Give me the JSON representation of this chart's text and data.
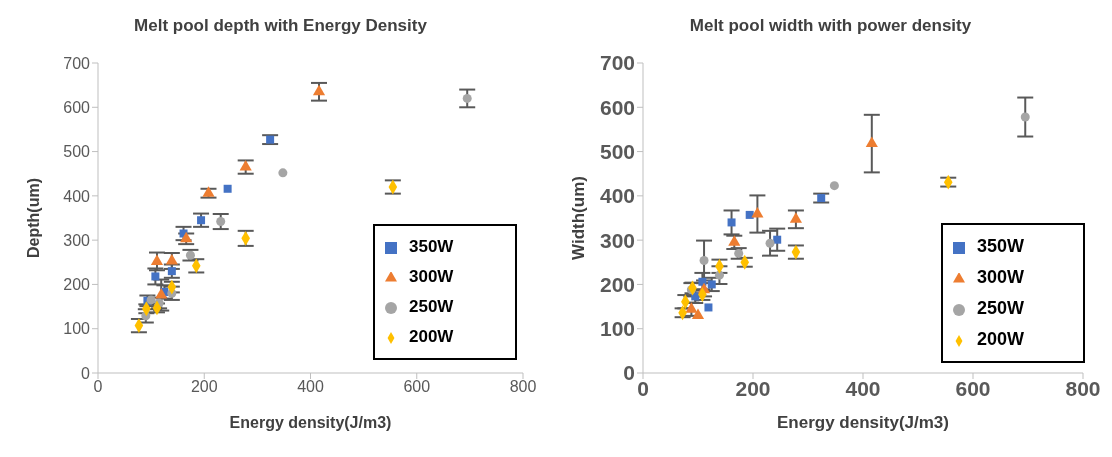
{
  "chart_data": [
    {
      "type": "scatter",
      "title": "Melt pool depth with Energy Density",
      "xlabel": "Energy density(J/m3)",
      "ylabel": "Depth(um)",
      "xlim": [
        0,
        800
      ],
      "xticks": [
        0,
        200,
        400,
        600,
        800
      ],
      "ylim": [
        0,
        700
      ],
      "yticks": [
        0,
        100,
        200,
        300,
        400,
        500,
        600,
        700
      ],
      "grid": false,
      "legend": "bottom right",
      "series": [
        {
          "name": "350W",
          "color": "#4472c4",
          "marker": "square",
          "x": [
            93,
            108,
            125,
            139,
            161,
            194,
            244,
            324
          ],
          "values": [
            163,
            218,
            183,
            230,
            315,
            345,
            416,
            527
          ],
          "errors": [
            12,
            18,
            15,
            15,
            15,
            15,
            null,
            10
          ]
        },
        {
          "name": "300W",
          "color": "#ed7d31",
          "marker": "triangle",
          "x": [
            111,
            119,
            139,
            166,
            208,
            278,
            416
          ],
          "values": [
            252,
            176,
            253,
            303,
            406,
            465,
            635
          ],
          "errors": [
            20,
            35,
            18,
            12,
            10,
            15,
            20
          ]
        },
        {
          "name": "250W",
          "color": "#a5a5a5",
          "marker": "circle",
          "x": [
            90,
            100,
            115,
            139,
            174,
            231,
            348,
            695
          ],
          "values": [
            129,
            165,
            158,
            180,
            266,
            342,
            452,
            620
          ],
          "errors": [
            15,
            null,
            12,
            15,
            12,
            17,
            null,
            20
          ]
        },
        {
          "name": "200W",
          "color": "#ffc000",
          "marker": "diamond",
          "x": [
            77,
            91,
            111,
            139,
            185,
            278,
            555
          ],
          "values": [
            107,
            145,
            147,
            194,
            242,
            304,
            420
          ],
          "errors": [
            15,
            10,
            10,
            12,
            15,
            17,
            15
          ]
        }
      ]
    },
    {
      "type": "scatter",
      "title": "Melt pool width with power density",
      "xlabel": "Energy density(J/m3)",
      "ylabel": "Width(um)",
      "xlim": [
        0,
        800
      ],
      "xticks": [
        0,
        200,
        400,
        600,
        800
      ],
      "ylim": [
        0,
        700
      ],
      "yticks": [
        0,
        100,
        200,
        300,
        400,
        500,
        600,
        700
      ],
      "grid": false,
      "legend": "bottom right",
      "series": [
        {
          "name": "350W",
          "color": "#4472c4",
          "marker": "square",
          "x": [
            95,
            108,
            119,
            125,
            161,
            194,
            244,
            324
          ],
          "values": [
            173,
            206,
            148,
            200,
            340,
            357,
            301,
            395
          ],
          "errors": [
            15,
            20,
            null,
            15,
            27,
            null,
            25,
            10
          ]
        },
        {
          "name": "300W",
          "color": "#ed7d31",
          "marker": "triangle",
          "x": [
            88,
            100,
            111,
            166,
            208,
            278,
            416
          ],
          "values": [
            144,
            130,
            188,
            295,
            359,
            347,
            518
          ],
          "errors": [
            15,
            null,
            15,
            15,
            42,
            20,
            65
          ]
        },
        {
          "name": "250W",
          "color": "#a5a5a5",
          "marker": "circle",
          "x": [
            88,
            111,
            139,
            174,
            231,
            348,
            695
          ],
          "values": [
            188,
            254,
            221,
            270,
            293,
            423,
            578
          ],
          "errors": [
            15,
            45,
            20,
            12,
            28,
            null,
            44
          ]
        },
        {
          "name": "200W",
          "color": "#ffc000",
          "marker": "diamond",
          "x": [
            72,
            77,
            90,
            108,
            139,
            185,
            278,
            555
          ],
          "values": [
            136,
            161,
            192,
            177,
            241,
            250,
            273,
            431
          ],
          "errors": [
            10,
            15,
            12,
            12,
            15,
            10,
            15,
            10
          ]
        }
      ]
    }
  ]
}
